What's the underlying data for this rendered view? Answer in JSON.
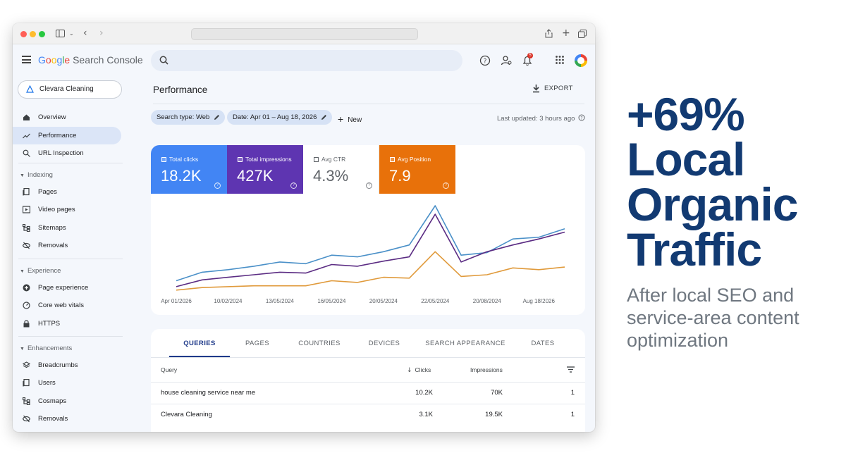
{
  "app": {
    "logo_text": "Google Search Console",
    "logo_colors": [
      "#4285f4",
      "#ea4335",
      "#fbbc04",
      "#4285f4",
      "#34a853",
      "#ea4335"
    ],
    "notification_count": "5"
  },
  "property": {
    "name": "Clevara Cleaning"
  },
  "sidebar": {
    "top_items": [
      {
        "label": "Overview",
        "icon": "home-icon"
      },
      {
        "label": "Performance",
        "icon": "trending-up-icon",
        "active": true
      },
      {
        "label": "URL Inspection",
        "icon": "search-icon"
      }
    ],
    "sections": [
      {
        "title": "Indexing",
        "items": [
          {
            "label": "Pages",
            "icon": "pages-icon"
          },
          {
            "label": "Video pages",
            "icon": "video-pages-icon"
          },
          {
            "label": "Sitemaps",
            "icon": "sitemap-icon"
          },
          {
            "label": "Removals",
            "icon": "removals-icon"
          }
        ]
      },
      {
        "title": "Experience",
        "items": [
          {
            "label": "Page experience",
            "icon": "add-circle-icon"
          },
          {
            "label": "Core web vitals",
            "icon": "gauge-icon"
          },
          {
            "label": "HTTPS",
            "icon": "lock-icon"
          }
        ]
      },
      {
        "title": "Enhancements",
        "items": [
          {
            "label": "Breadcrumbs",
            "icon": "layers-icon"
          },
          {
            "label": "Users",
            "icon": "users-icon"
          },
          {
            "label": "Cosmaps",
            "icon": "sitemap-icon"
          },
          {
            "label": "Removals",
            "icon": "removals-icon"
          }
        ]
      }
    ]
  },
  "main": {
    "title": "Performance",
    "export_label": "EXPORT",
    "filters": {
      "search_type": "Search type: Web",
      "date": "Date: Apr 01 – Aug 18, 2026",
      "new_label": "New"
    },
    "last_updated": "Last updated: 3 hours ago"
  },
  "metrics": [
    {
      "label": "Total clicks",
      "value": "18.2K",
      "color": "#4285f4",
      "selected": true
    },
    {
      "label": "Total impressions",
      "value": "427K",
      "color": "#5e35b1",
      "selected": true
    },
    {
      "label": "Avg CTR",
      "value": "4.3%",
      "color": "#ffffff",
      "selected": false
    },
    {
      "label": "Avg Position",
      "value": "7.9",
      "color": "#e8710a",
      "selected": true
    }
  ],
  "chart_data": {
    "type": "line",
    "x": [
      "Apr 01/2026",
      "",
      "10/02/2024",
      "",
      "13/05/2024",
      "",
      "16/05/2024",
      "",
      "20/05/2024",
      "",
      "22/05/2024",
      "",
      "20/08/2024",
      "",
      "Aug 18/2026",
      ""
    ],
    "x_tick_labels": [
      "Apr 01/2026",
      "10/02/2024",
      "13/05/2024",
      "16/05/2024",
      "20/05/2024",
      "22/05/2024",
      "20/08/2024",
      "Aug 18/2026"
    ],
    "ylim": [
      0,
      100
    ],
    "grid": false,
    "series": [
      {
        "color": "#4a90c8",
        "values": [
          12,
          22,
          25,
          29,
          34,
          32,
          42,
          40,
          46,
          54,
          100,
          42,
          45,
          61,
          63,
          73
        ]
      },
      {
        "color": "#5b2c83",
        "values": [
          5,
          13,
          16,
          19,
          22,
          21,
          31,
          29,
          35,
          40,
          90,
          34,
          46,
          54,
          61,
          69
        ]
      },
      {
        "color": "#e09a3b",
        "values": [
          1,
          4,
          5,
          6,
          6,
          6,
          12,
          10,
          16,
          15,
          46,
          17,
          19,
          27,
          25,
          28
        ]
      }
    ]
  },
  "table": {
    "tabs": [
      "QUERIES",
      "PAGES",
      "COUNTRIES",
      "DEVICES",
      "SEARCH APPEARANCE",
      "DATES"
    ],
    "headers": {
      "query": "Query",
      "clicks": "Clicks",
      "impressions": "Impressions"
    },
    "rows": [
      {
        "query": "house cleaning service near me",
        "clicks": "10.2K",
        "impressions": "70K",
        "position": "1"
      },
      {
        "query": "Clevara Cleaning",
        "clicks": "3.1K",
        "impressions": "19.5K",
        "position": "1"
      }
    ]
  },
  "promo": {
    "headline": [
      "+69%",
      "Local",
      "Organic",
      "Traffic"
    ],
    "subtext": "After local SEO and service-area content optimization",
    "headline_color": "#123a72"
  }
}
